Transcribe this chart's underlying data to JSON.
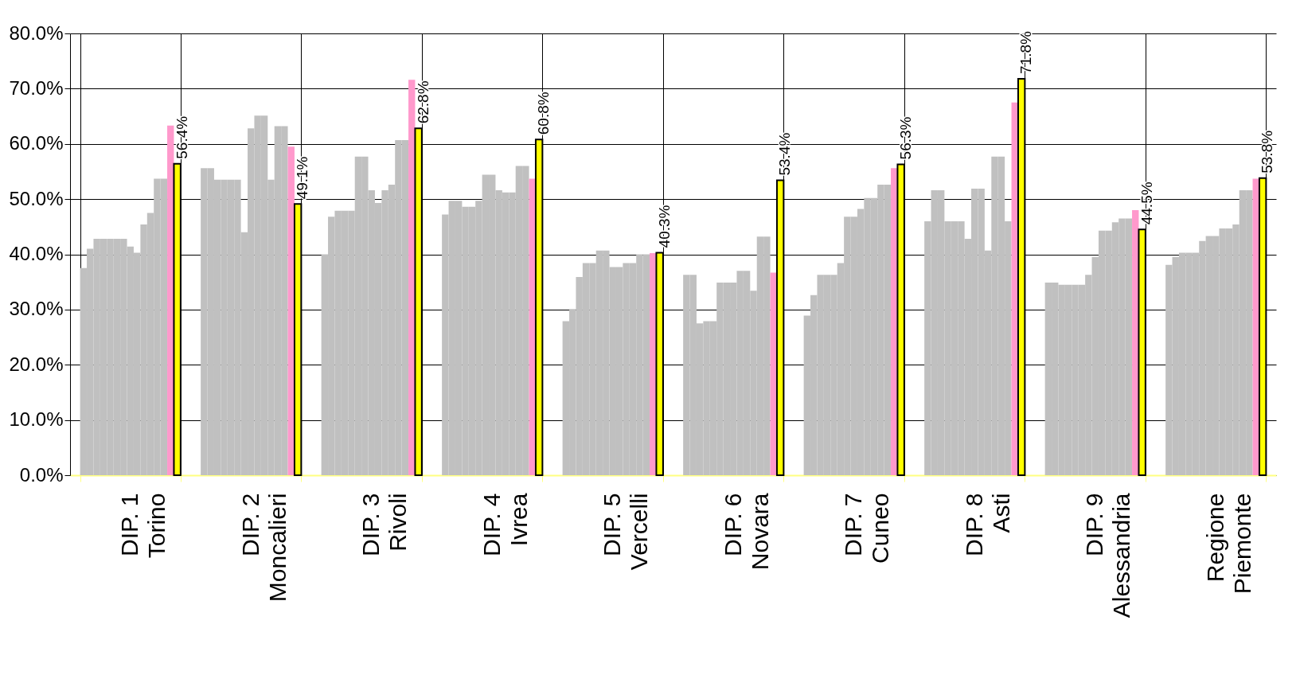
{
  "chart_data": {
    "type": "bar",
    "categories": [
      "DIP. 1\nTorino",
      "DIP. 2\nMoncalieri",
      "DIP. 3\nRivoli",
      "DIP. 4\nIvrea",
      "DIP. 5\nVercelli",
      "DIP. 6\nNovara",
      "DIP. 7\nCuneo",
      "DIP. 8\nAsti",
      "DIP. 9\nAlessandria",
      "Regione\nPiemonte"
    ],
    "series": [
      {
        "color": "#c0c0c0",
        "values": [
          37.5,
          55.6,
          40.0,
          47.2,
          27.9,
          36.3,
          28.9,
          46.0,
          34.9,
          38.1
        ]
      },
      {
        "color": "#c0c0c0",
        "values": [
          41.0,
          55.6,
          46.8,
          49.7,
          30.1,
          36.3,
          32.6,
          51.6,
          34.9,
          39.5
        ]
      },
      {
        "color": "#c0c0c0",
        "values": [
          42.8,
          53.5,
          47.9,
          49.7,
          35.9,
          27.5,
          36.3,
          51.6,
          34.5,
          40.3
        ]
      },
      {
        "color": "#c0c0c0",
        "values": [
          42.8,
          53.5,
          47.9,
          48.6,
          38.4,
          27.9,
          36.3,
          46.0,
          34.5,
          40.3
        ]
      },
      {
        "color": "#c0c0c0",
        "values": [
          42.8,
          53.5,
          47.9,
          48.6,
          38.4,
          27.9,
          36.3,
          46.0,
          34.5,
          40.3
        ]
      },
      {
        "color": "#c0c0c0",
        "values": [
          42.8,
          53.5,
          57.7,
          49.7,
          40.7,
          34.9,
          38.4,
          46.0,
          34.5,
          42.4
        ]
      },
      {
        "color": "#c0c0c0",
        "values": [
          42.8,
          44.0,
          57.7,
          54.4,
          40.7,
          34.9,
          46.8,
          42.8,
          36.3,
          43.3
        ]
      },
      {
        "color": "#c0c0c0",
        "values": [
          41.4,
          62.8,
          51.6,
          54.4,
          37.7,
          34.9,
          46.8,
          51.9,
          39.5,
          43.3
        ]
      },
      {
        "color": "#c0c0c0",
        "values": [
          40.3,
          65.1,
          49.3,
          51.6,
          37.7,
          37.0,
          48.2,
          51.9,
          44.3,
          44.7
        ]
      },
      {
        "color": "#c0c0c0",
        "values": [
          45.4,
          65.1,
          51.6,
          51.2,
          38.4,
          37.0,
          50.2,
          40.7,
          44.3,
          44.7
        ]
      },
      {
        "color": "#c0c0c0",
        "values": [
          47.5,
          53.5,
          52.6,
          51.2,
          38.4,
          33.4,
          50.2,
          57.7,
          45.8,
          45.4
        ]
      },
      {
        "color": "#c0c0c0",
        "values": [
          53.7,
          63.2,
          60.7,
          56.0,
          40.0,
          43.2,
          52.6,
          57.7,
          46.5,
          51.6
        ]
      },
      {
        "color": "#c0c0c0",
        "values": [
          53.7,
          63.2,
          60.7,
          56.0,
          40.0,
          43.2,
          52.6,
          46.0,
          46.5,
          51.6
        ]
      },
      {
        "color": "#ff99cc",
        "values": [
          63.3,
          59.5,
          71.6,
          53.7,
          40.2,
          36.7,
          55.6,
          67.5,
          48.0,
          53.7
        ]
      },
      {
        "color": "#ffff00",
        "values": [
          56.4,
          49.1,
          62.8,
          60.8,
          40.3,
          53.4,
          56.3,
          71.8,
          44.5,
          53.8
        ],
        "value_labels": [
          "56.4%",
          "49.1%",
          "62.8%",
          "60.8%",
          "40.3%",
          "53.4%",
          "56.3%",
          "71.8%",
          "44.5%",
          "53.8%"
        ]
      }
    ],
    "ylim": [
      0,
      80
    ],
    "yticks": [
      {
        "value": 0,
        "label": "0.0%"
      },
      {
        "value": 10,
        "label": "10.0%"
      },
      {
        "value": 20,
        "label": "20.0%"
      },
      {
        "value": 30,
        "label": "30.0%"
      },
      {
        "value": 40,
        "label": "40.0%"
      },
      {
        "value": 50,
        "label": "50.0%"
      },
      {
        "value": 60,
        "label": "60.0%"
      },
      {
        "value": 70,
        "label": "70.0%"
      },
      {
        "value": 80,
        "label": "80.0%"
      }
    ],
    "grid": true
  }
}
